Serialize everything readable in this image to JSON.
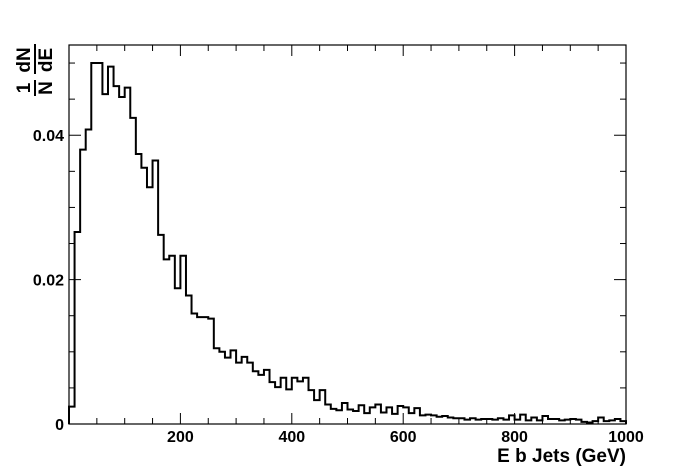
{
  "chart_data": {
    "type": "histogram",
    "title": "",
    "xlabel": "E b Jets (GeV)",
    "ylabel": {
      "numerator": "1",
      "numerator_right": "dN",
      "denominator": "N",
      "denominator_right": "dE"
    },
    "xlim": [
      0,
      1000
    ],
    "ylim": [
      0,
      0.0525
    ],
    "x_ticks": [
      200,
      400,
      600,
      800,
      1000
    ],
    "y_ticks": [
      0,
      0.02,
      0.04
    ],
    "y_tick_labels": [
      "0",
      "0.02",
      "0.04"
    ],
    "grid": false,
    "legend": "none",
    "line_color": "#000000",
    "bin_width": 10,
    "bin_start": 0,
    "values": [
      0.0024,
      0.0266,
      0.038,
      0.0408,
      0.05,
      0.05,
      0.0457,
      0.0495,
      0.0468,
      0.0453,
      0.0466,
      0.0424,
      0.0374,
      0.0355,
      0.0328,
      0.0365,
      0.0262,
      0.0228,
      0.0233,
      0.0188,
      0.0233,
      0.0178,
      0.0153,
      0.0148,
      0.0148,
      0.0146,
      0.0105,
      0.01,
      0.0092,
      0.0102,
      0.0085,
      0.0093,
      0.0085,
      0.0073,
      0.0068,
      0.0075,
      0.0058,
      0.0051,
      0.0064,
      0.0048,
      0.0064,
      0.0059,
      0.0064,
      0.0047,
      0.0033,
      0.0047,
      0.0027,
      0.0021,
      0.0019,
      0.0029,
      0.002,
      0.0018,
      0.0026,
      0.0015,
      0.0023,
      0.0027,
      0.0016,
      0.0023,
      0.0014,
      0.0025,
      0.0023,
      0.0015,
      0.0022,
      0.0012,
      0.0013,
      0.0012,
      0.001,
      0.0011,
      0.0009,
      0.0008,
      0.0008,
      0.0006,
      0.0008,
      0.0006,
      0.0007,
      0.0007,
      0.0006,
      0.0008,
      0.0006,
      0.0012,
      0.0006,
      0.0013,
      0.0005,
      0.0009,
      0.0005,
      0.0011,
      0.0007,
      0.0007,
      0.0005,
      0.0006,
      0.0007,
      0.0006,
      0.0003,
      0.0002,
      0.0004,
      0.0009,
      0.0004,
      0.0005,
      0.0007,
      0.0004
    ]
  }
}
